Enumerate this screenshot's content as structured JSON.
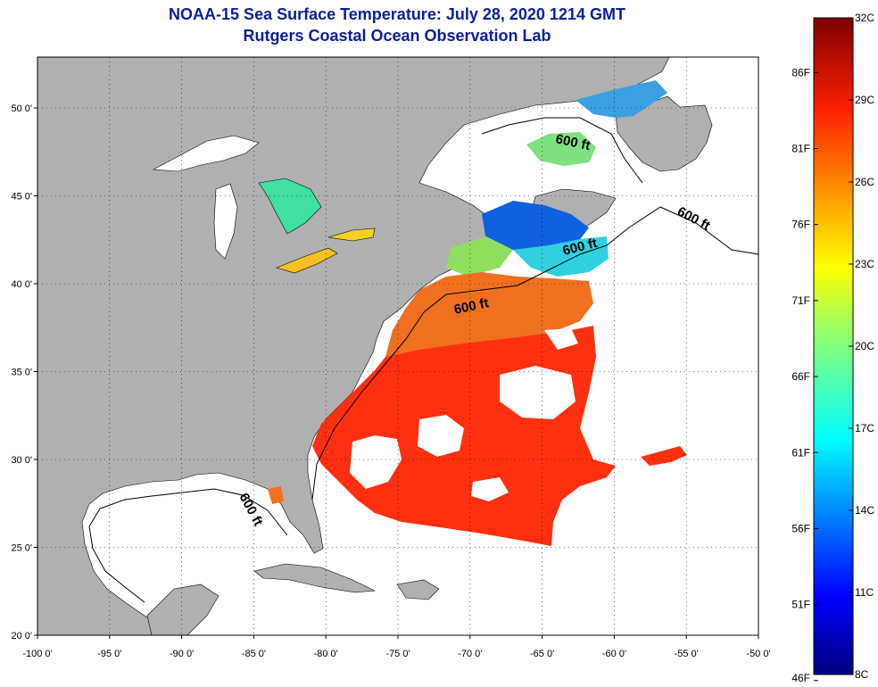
{
  "title": "NOAA-15 Sea Surface Temperature:  July 28, 2020 1214 GMT",
  "subtitle": "Rutgers Coastal Ocean Observation Lab",
  "longitude_ticks": [
    "-100 0'",
    "-95 0'",
    "-90 0'",
    "-85 0'",
    "-80 0'",
    "-75 0'",
    "-70 0'",
    "-65 0'",
    "-60 0'",
    "-55 0'",
    "-50 0'"
  ],
  "latitude_ticks": [
    "50 0'",
    "45 0'",
    "40 0'",
    "35 0'",
    "30 0'",
    "25 0'",
    "20 0'"
  ],
  "contour_labels": [
    "600 ft",
    "600 ft",
    "600 ft",
    "600 ft",
    "600 ft"
  ],
  "colorbar": {
    "celsius": [
      "32C",
      "29C",
      "26C",
      "23C",
      "20C",
      "17C",
      "14C",
      "11C",
      "8C"
    ],
    "fahrenheit": [
      "86F",
      "81F",
      "76F",
      "71F",
      "66F",
      "61F",
      "56F",
      "51F",
      "46F"
    ],
    "range_c": [
      8,
      32
    ]
  },
  "colors": {
    "land": "#b0b0b0",
    "water": "#ffffff",
    "title": "#0a1f9c"
  }
}
